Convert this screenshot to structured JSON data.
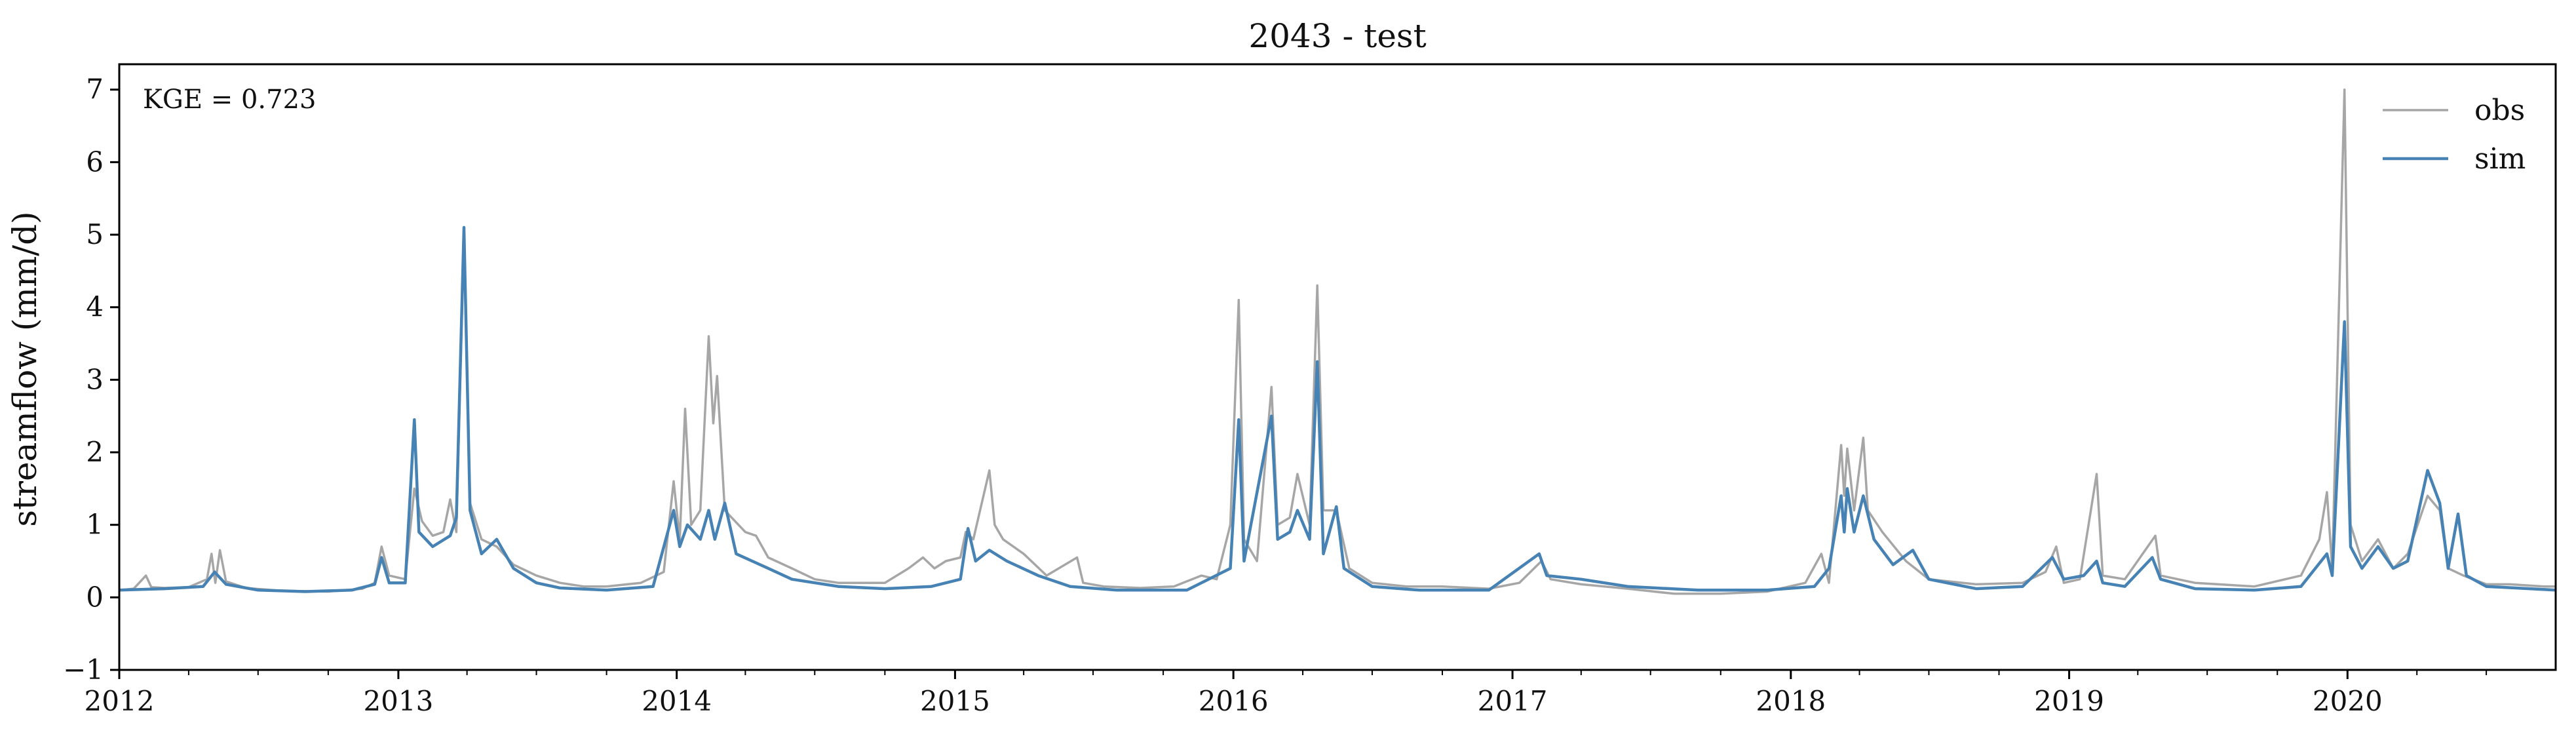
{
  "chart_data": {
    "type": "line",
    "title": "2043 - test",
    "xlabel": "",
    "ylabel": "streamflow (mm/d)",
    "annotation": "KGE = 0.723",
    "xlim": [
      "2012-01-01",
      "2020-09-30"
    ],
    "ylim": [
      -1,
      7.35
    ],
    "x_ticks": [
      "2012",
      "2013",
      "2014",
      "2015",
      "2016",
      "2017",
      "2018",
      "2019",
      "2020"
    ],
    "y_ticks": [
      "−1",
      "0",
      "1",
      "2",
      "3",
      "4",
      "5",
      "6",
      "7"
    ],
    "legend_position": "top-right",
    "grid": false,
    "series": [
      {
        "name": "obs",
        "color": "#a6a6a6",
        "points": [
          [
            "2012-01-01",
            0.1
          ],
          [
            "2012-01-20",
            0.12
          ],
          [
            "2012-02-05",
            0.3
          ],
          [
            "2012-02-12",
            0.14
          ],
          [
            "2012-03-01",
            0.13
          ],
          [
            "2012-04-01",
            0.14
          ],
          [
            "2012-04-25",
            0.25
          ],
          [
            "2012-05-01",
            0.6
          ],
          [
            "2012-05-06",
            0.2
          ],
          [
            "2012-05-12",
            0.65
          ],
          [
            "2012-05-20",
            0.22
          ],
          [
            "2012-06-15",
            0.13
          ],
          [
            "2012-08-01",
            0.09
          ],
          [
            "2012-10-01",
            0.08
          ],
          [
            "2012-11-15",
            0.12
          ],
          [
            "2012-12-01",
            0.2
          ],
          [
            "2012-12-10",
            0.7
          ],
          [
            "2012-12-20",
            0.3
          ],
          [
            "2013-01-10",
            0.25
          ],
          [
            "2013-01-22",
            1.5
          ],
          [
            "2013-02-01",
            1.05
          ],
          [
            "2013-02-15",
            0.85
          ],
          [
            "2013-03-01",
            0.9
          ],
          [
            "2013-03-10",
            1.35
          ],
          [
            "2013-03-18",
            0.9
          ],
          [
            "2013-03-28",
            5.0
          ],
          [
            "2013-04-05",
            1.3
          ],
          [
            "2013-04-20",
            0.8
          ],
          [
            "2013-05-10",
            0.7
          ],
          [
            "2013-06-01",
            0.45
          ],
          [
            "2013-07-01",
            0.3
          ],
          [
            "2013-08-01",
            0.2
          ],
          [
            "2013-09-01",
            0.15
          ],
          [
            "2013-10-01",
            0.15
          ],
          [
            "2013-11-15",
            0.2
          ],
          [
            "2013-12-15",
            0.35
          ],
          [
            "2013-12-28",
            1.6
          ],
          [
            "2014-01-05",
            0.8
          ],
          [
            "2014-01-12",
            2.6
          ],
          [
            "2014-01-20",
            1.0
          ],
          [
            "2014-02-01",
            1.2
          ],
          [
            "2014-02-12",
            3.6
          ],
          [
            "2014-02-18",
            2.4
          ],
          [
            "2014-02-23",
            3.05
          ],
          [
            "2014-03-05",
            1.2
          ],
          [
            "2014-04-01",
            0.9
          ],
          [
            "2014-04-15",
            0.85
          ],
          [
            "2014-05-01",
            0.55
          ],
          [
            "2014-06-01",
            0.4
          ],
          [
            "2014-07-01",
            0.25
          ],
          [
            "2014-08-01",
            0.2
          ],
          [
            "2014-09-01",
            0.2
          ],
          [
            "2014-10-01",
            0.2
          ],
          [
            "2014-11-01",
            0.4
          ],
          [
            "2014-11-20",
            0.55
          ],
          [
            "2014-12-05",
            0.4
          ],
          [
            "2014-12-20",
            0.5
          ],
          [
            "2015-01-08",
            0.55
          ],
          [
            "2015-01-15",
            0.9
          ],
          [
            "2015-01-25",
            0.8
          ],
          [
            "2015-02-15",
            1.75
          ],
          [
            "2015-02-22",
            1.0
          ],
          [
            "2015-03-05",
            0.8
          ],
          [
            "2015-04-01",
            0.6
          ],
          [
            "2015-05-01",
            0.3
          ],
          [
            "2015-06-10",
            0.55
          ],
          [
            "2015-06-18",
            0.2
          ],
          [
            "2015-07-15",
            0.15
          ],
          [
            "2015-09-01",
            0.13
          ],
          [
            "2015-10-15",
            0.15
          ],
          [
            "2015-11-20",
            0.3
          ],
          [
            "2015-12-10",
            0.25
          ],
          [
            "2015-12-28",
            1.0
          ],
          [
            "2016-01-08",
            4.1
          ],
          [
            "2016-01-15",
            0.8
          ],
          [
            "2016-02-01",
            0.5
          ],
          [
            "2016-02-20",
            2.9
          ],
          [
            "2016-02-28",
            1.0
          ],
          [
            "2016-03-15",
            1.1
          ],
          [
            "2016-03-25",
            1.7
          ],
          [
            "2016-04-10",
            1.0
          ],
          [
            "2016-04-20",
            4.3
          ],
          [
            "2016-04-28",
            1.2
          ],
          [
            "2016-05-15",
            1.2
          ],
          [
            "2016-06-01",
            0.4
          ],
          [
            "2016-07-01",
            0.2
          ],
          [
            "2016-08-15",
            0.15
          ],
          [
            "2016-10-01",
            0.15
          ],
          [
            "2016-12-01",
            0.12
          ],
          [
            "2017-01-10",
            0.2
          ],
          [
            "2017-02-08",
            0.5
          ],
          [
            "2017-02-20",
            0.25
          ],
          [
            "2017-04-01",
            0.18
          ],
          [
            "2017-06-01",
            0.12
          ],
          [
            "2017-08-01",
            0.05
          ],
          [
            "2017-10-01",
            0.05
          ],
          [
            "2017-12-01",
            0.08
          ],
          [
            "2018-01-20",
            0.2
          ],
          [
            "2018-02-10",
            0.6
          ],
          [
            "2018-02-20",
            0.2
          ],
          [
            "2018-03-08",
            2.1
          ],
          [
            "2018-03-12",
            1.4
          ],
          [
            "2018-03-16",
            2.05
          ],
          [
            "2018-03-25",
            1.2
          ],
          [
            "2018-04-06",
            2.2
          ],
          [
            "2018-04-12",
            1.2
          ],
          [
            "2018-05-01",
            0.9
          ],
          [
            "2018-06-01",
            0.5
          ],
          [
            "2018-07-01",
            0.25
          ],
          [
            "2018-09-01",
            0.18
          ],
          [
            "2018-11-01",
            0.2
          ],
          [
            "2018-12-01",
            0.35
          ],
          [
            "2018-12-15",
            0.7
          ],
          [
            "2018-12-25",
            0.2
          ],
          [
            "2019-01-15",
            0.25
          ],
          [
            "2019-02-06",
            1.7
          ],
          [
            "2019-02-14",
            0.3
          ],
          [
            "2019-03-15",
            0.25
          ],
          [
            "2019-04-24",
            0.85
          ],
          [
            "2019-05-01",
            0.3
          ],
          [
            "2019-06-15",
            0.2
          ],
          [
            "2019-09-01",
            0.15
          ],
          [
            "2019-11-01",
            0.3
          ],
          [
            "2019-11-25",
            0.8
          ],
          [
            "2019-12-05",
            1.45
          ],
          [
            "2019-12-12",
            0.4
          ],
          [
            "2019-12-28",
            7.0
          ],
          [
            "2020-01-05",
            1.0
          ],
          [
            "2020-01-20",
            0.5
          ],
          [
            "2020-02-10",
            0.8
          ],
          [
            "2020-03-01",
            0.4
          ],
          [
            "2020-03-20",
            0.6
          ],
          [
            "2020-04-15",
            1.4
          ],
          [
            "2020-05-01",
            1.2
          ],
          [
            "2020-05-12",
            0.4
          ],
          [
            "2020-06-01",
            0.3
          ],
          [
            "2020-07-01",
            0.18
          ],
          [
            "2020-08-01",
            0.18
          ],
          [
            "2020-09-15",
            0.15
          ],
          [
            "2020-09-30",
            0.15
          ]
        ]
      },
      {
        "name": "sim",
        "color": "#4682b4",
        "points": [
          [
            "2012-01-01",
            0.1
          ],
          [
            "2012-03-01",
            0.12
          ],
          [
            "2012-04-20",
            0.15
          ],
          [
            "2012-05-05",
            0.35
          ],
          [
            "2012-05-20",
            0.18
          ],
          [
            "2012-07-01",
            0.1
          ],
          [
            "2012-09-01",
            0.08
          ],
          [
            "2012-11-01",
            0.1
          ],
          [
            "2012-12-01",
            0.18
          ],
          [
            "2012-12-10",
            0.55
          ],
          [
            "2012-12-20",
            0.2
          ],
          [
            "2013-01-10",
            0.2
          ],
          [
            "2013-01-22",
            2.45
          ],
          [
            "2013-01-28",
            0.9
          ],
          [
            "2013-02-15",
            0.7
          ],
          [
            "2013-03-10",
            0.85
          ],
          [
            "2013-03-18",
            1.1
          ],
          [
            "2013-03-28",
            5.1
          ],
          [
            "2013-04-05",
            1.2
          ],
          [
            "2013-04-20",
            0.6
          ],
          [
            "2013-05-10",
            0.8
          ],
          [
            "2013-06-01",
            0.4
          ],
          [
            "2013-07-01",
            0.2
          ],
          [
            "2013-08-01",
            0.13
          ],
          [
            "2013-10-01",
            0.1
          ],
          [
            "2013-12-01",
            0.15
          ],
          [
            "2013-12-28",
            1.2
          ],
          [
            "2014-01-05",
            0.7
          ],
          [
            "2014-01-15",
            1.0
          ],
          [
            "2014-02-01",
            0.8
          ],
          [
            "2014-02-12",
            1.2
          ],
          [
            "2014-02-20",
            0.8
          ],
          [
            "2014-03-05",
            1.3
          ],
          [
            "2014-03-20",
            0.6
          ],
          [
            "2014-05-01",
            0.4
          ],
          [
            "2014-06-01",
            0.25
          ],
          [
            "2014-08-01",
            0.15
          ],
          [
            "2014-10-01",
            0.12
          ],
          [
            "2014-12-01",
            0.15
          ],
          [
            "2015-01-08",
            0.25
          ],
          [
            "2015-01-18",
            0.95
          ],
          [
            "2015-01-28",
            0.5
          ],
          [
            "2015-02-15",
            0.65
          ],
          [
            "2015-03-10",
            0.5
          ],
          [
            "2015-04-20",
            0.3
          ],
          [
            "2015-06-01",
            0.15
          ],
          [
            "2015-08-01",
            0.1
          ],
          [
            "2015-11-01",
            0.1
          ],
          [
            "2015-12-28",
            0.4
          ],
          [
            "2016-01-08",
            2.45
          ],
          [
            "2016-01-15",
            0.5
          ],
          [
            "2016-02-20",
            2.5
          ],
          [
            "2016-02-28",
            0.8
          ],
          [
            "2016-03-15",
            0.9
          ],
          [
            "2016-03-25",
            1.2
          ],
          [
            "2016-04-10",
            0.8
          ],
          [
            "2016-04-20",
            3.25
          ],
          [
            "2016-04-28",
            0.6
          ],
          [
            "2016-05-15",
            1.25
          ],
          [
            "2016-05-25",
            0.4
          ],
          [
            "2016-07-01",
            0.15
          ],
          [
            "2016-09-01",
            0.1
          ],
          [
            "2016-12-01",
            0.1
          ],
          [
            "2017-02-05",
            0.6
          ],
          [
            "2017-02-15",
            0.3
          ],
          [
            "2017-04-01",
            0.25
          ],
          [
            "2017-06-01",
            0.15
          ],
          [
            "2017-09-01",
            0.1
          ],
          [
            "2017-12-01",
            0.1
          ],
          [
            "2018-02-01",
            0.15
          ],
          [
            "2018-02-20",
            0.4
          ],
          [
            "2018-03-08",
            1.4
          ],
          [
            "2018-03-12",
            0.9
          ],
          [
            "2018-03-16",
            1.5
          ],
          [
            "2018-03-25",
            0.9
          ],
          [
            "2018-04-06",
            1.4
          ],
          [
            "2018-04-20",
            0.8
          ],
          [
            "2018-05-15",
            0.45
          ],
          [
            "2018-06-10",
            0.65
          ],
          [
            "2018-07-01",
            0.25
          ],
          [
            "2018-09-01",
            0.12
          ],
          [
            "2018-11-01",
            0.15
          ],
          [
            "2018-12-10",
            0.55
          ],
          [
            "2018-12-25",
            0.25
          ],
          [
            "2019-01-20",
            0.3
          ],
          [
            "2019-02-06",
            0.5
          ],
          [
            "2019-02-14",
            0.2
          ],
          [
            "2019-03-15",
            0.15
          ],
          [
            "2019-04-20",
            0.55
          ],
          [
            "2019-05-01",
            0.25
          ],
          [
            "2019-06-15",
            0.12
          ],
          [
            "2019-09-01",
            0.1
          ],
          [
            "2019-11-01",
            0.15
          ],
          [
            "2019-12-05",
            0.6
          ],
          [
            "2019-12-12",
            0.3
          ],
          [
            "2019-12-28",
            3.8
          ],
          [
            "2020-01-05",
            0.7
          ],
          [
            "2020-01-20",
            0.4
          ],
          [
            "2020-02-10",
            0.7
          ],
          [
            "2020-03-01",
            0.4
          ],
          [
            "2020-03-20",
            0.5
          ],
          [
            "2020-04-15",
            1.75
          ],
          [
            "2020-05-01",
            1.3
          ],
          [
            "2020-05-12",
            0.4
          ],
          [
            "2020-05-25",
            1.15
          ],
          [
            "2020-06-05",
            0.3
          ],
          [
            "2020-07-01",
            0.15
          ],
          [
            "2020-09-30",
            0.1
          ]
        ]
      }
    ]
  }
}
